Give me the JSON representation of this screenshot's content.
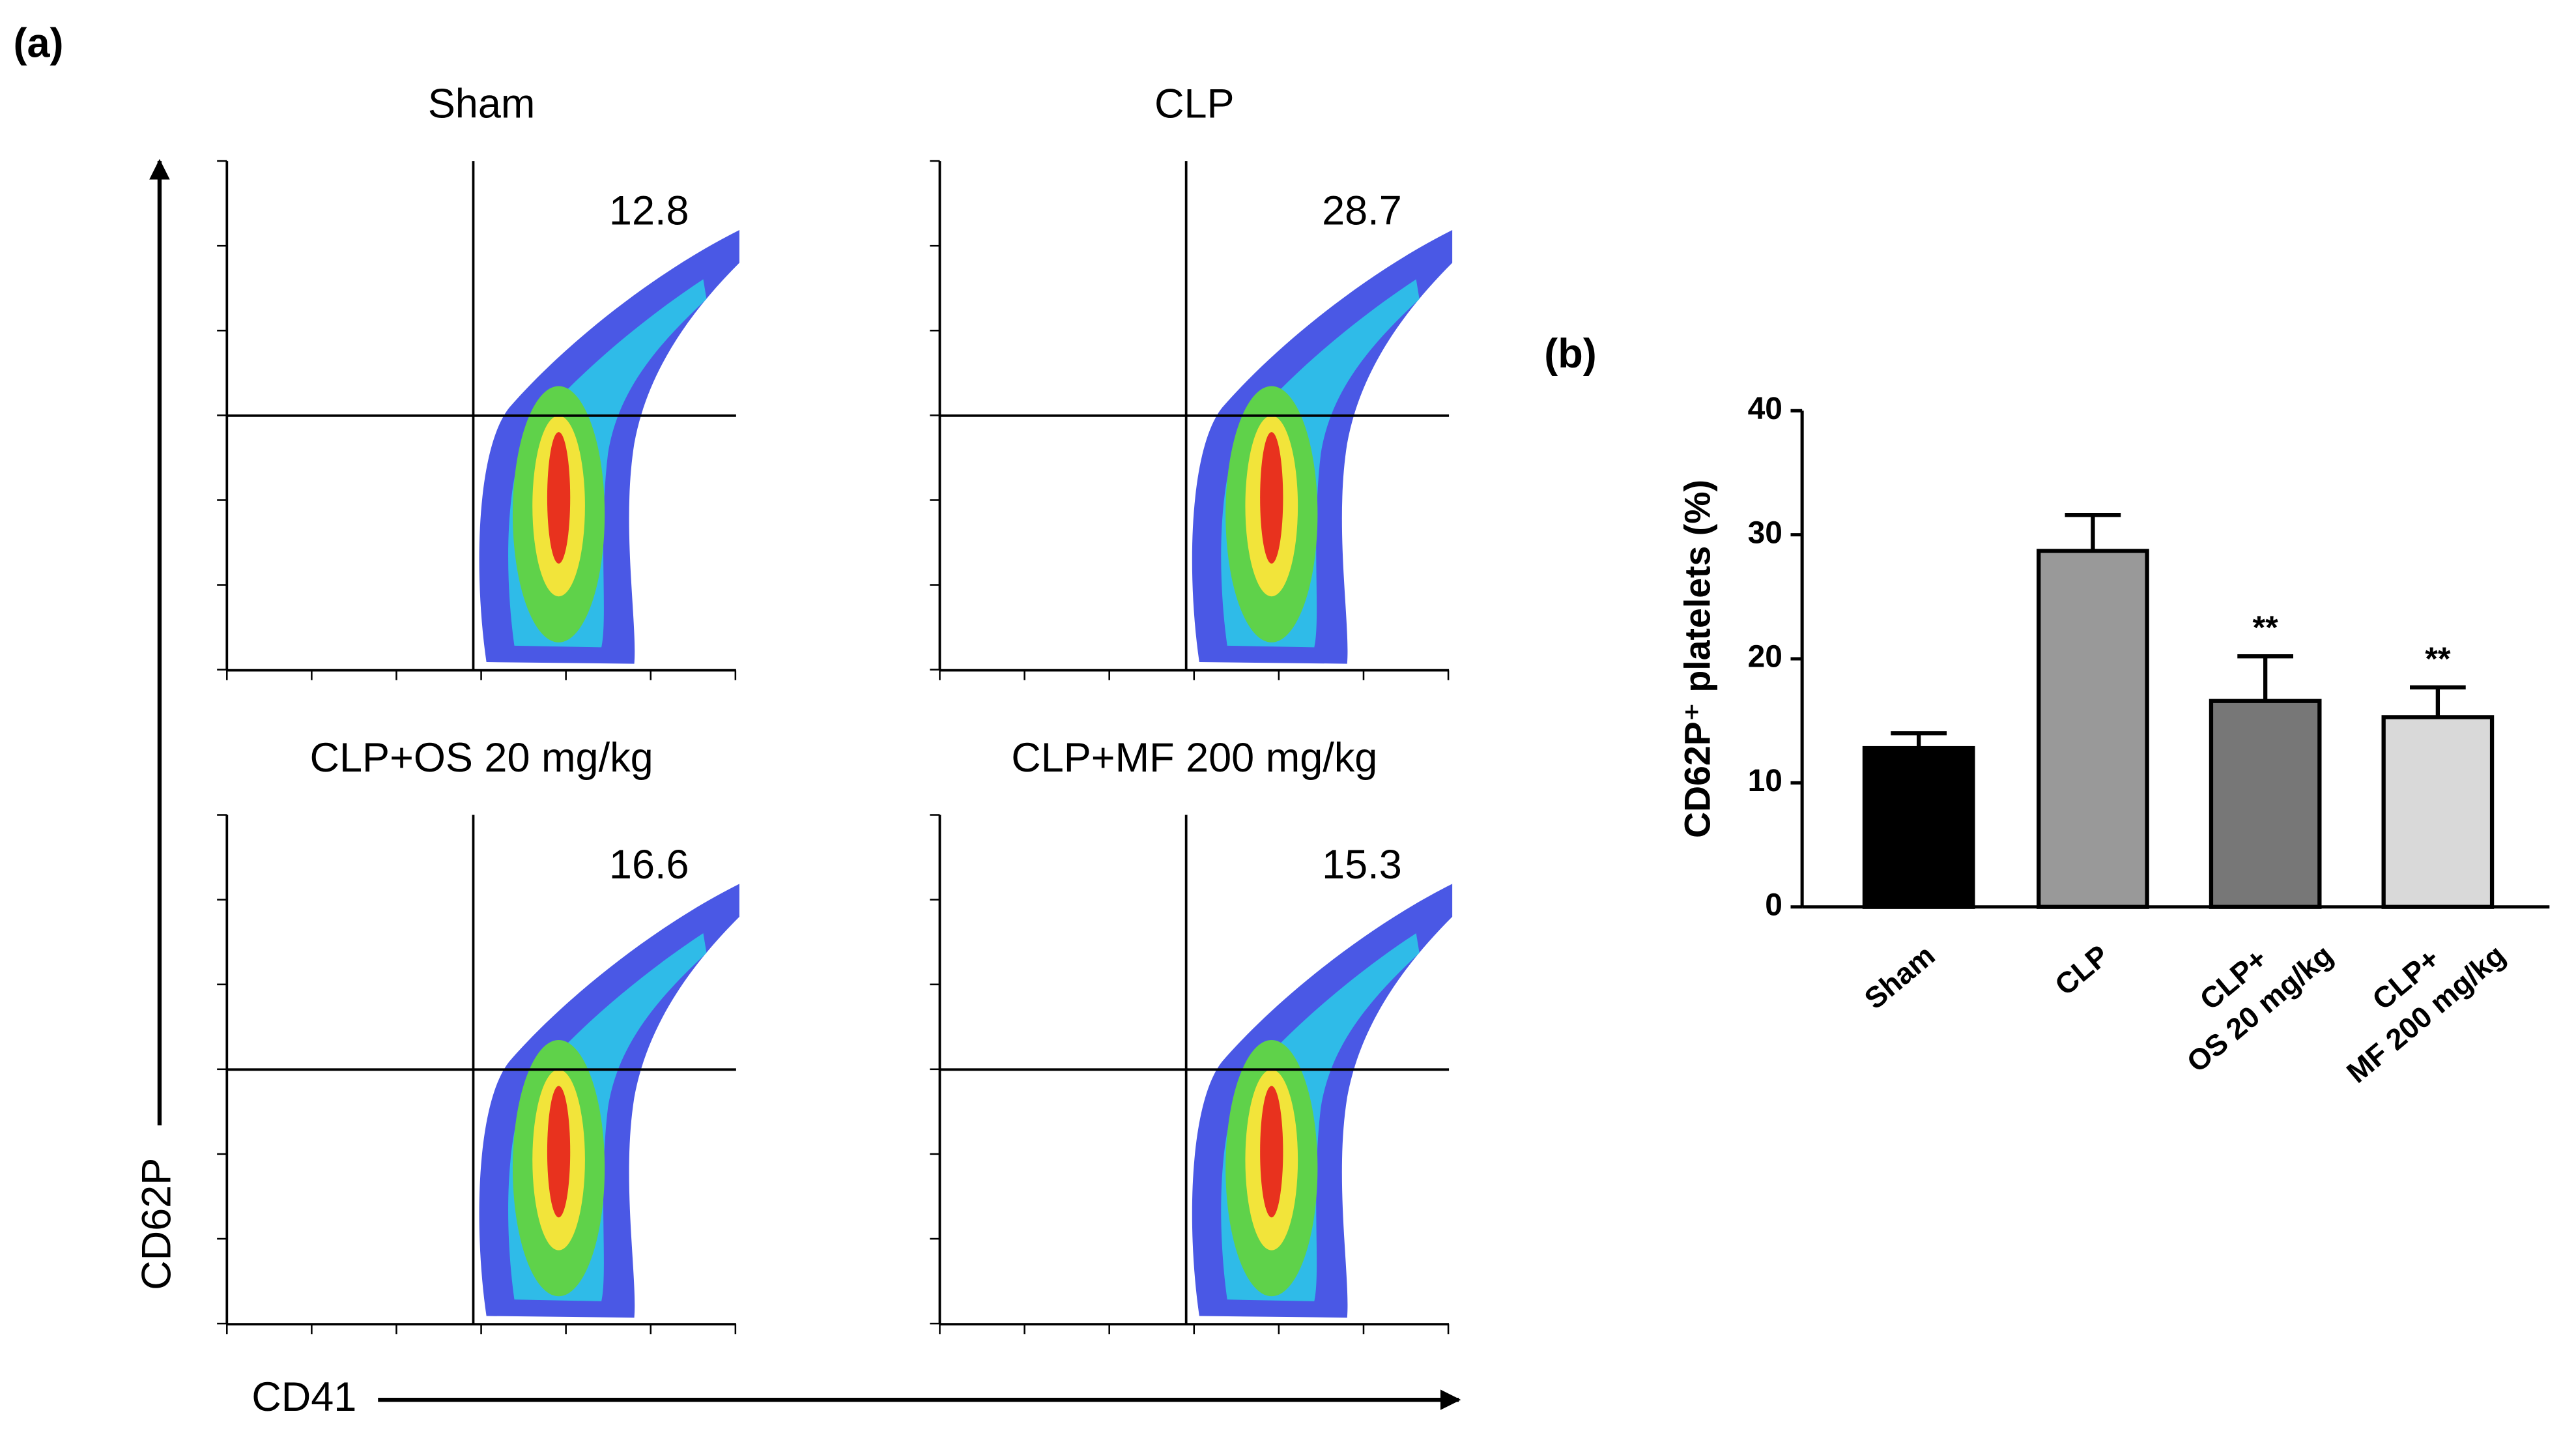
{
  "panel_a": {
    "label": "(a)",
    "y_axis_label": "CD62P",
    "x_axis_label": "CD41",
    "plots": [
      {
        "title": "Sham",
        "value": "12.8"
      },
      {
        "title": "CLP",
        "value": "28.7"
      },
      {
        "title": "CLP+OS 20 mg/kg",
        "value": "16.6"
      },
      {
        "title": "CLP+MF 200 mg/kg",
        "value": "15.3"
      }
    ]
  },
  "chart_data": {
    "type": "bar",
    "label": "(b)",
    "y_label": "CD62P⁺ platelets (%)",
    "categories": [
      "Sham",
      "CLP",
      "CLP+\nOS 20 mg/kg",
      "CLP+\nMF 200 mg/kg"
    ],
    "values": [
      12.8,
      28.7,
      16.6,
      15.3
    ],
    "errors": [
      1.2,
      2.9,
      3.6,
      2.4
    ],
    "colors": [
      "#000000",
      "#999999",
      "#777777",
      "#d9d9d9"
    ],
    "annotations": [
      null,
      null,
      "**",
      "**"
    ],
    "ylim": [
      0,
      40
    ],
    "yticks": [
      0,
      10,
      20,
      30,
      40
    ]
  }
}
